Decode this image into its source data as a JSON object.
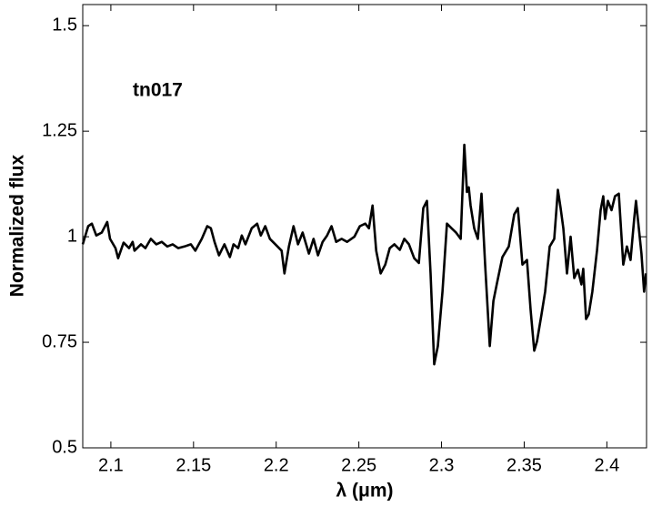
{
  "chart_data": {
    "type": "line",
    "xlabel": "λ (μm)",
    "ylabel": "Normalized flux",
    "annotation": "tn017",
    "x": [
      2.083,
      2.0863,
      2.0885,
      2.0912,
      2.0945,
      2.0978,
      2.0995,
      2.1028,
      2.1044,
      2.1077,
      2.111,
      2.1132,
      2.1143,
      2.1182,
      2.1209,
      2.1242,
      2.1275,
      2.1308,
      2.1341,
      2.1374,
      2.1407,
      2.1445,
      2.1484,
      2.1511,
      2.155,
      2.1583,
      2.1605,
      2.1627,
      2.1654,
      2.1687,
      2.172,
      2.1742,
      2.177,
      2.1792,
      2.1814,
      2.1852,
      2.1885,
      2.1907,
      2.1934,
      2.1962,
      2.1995,
      2.2033,
      2.205,
      2.2077,
      2.2105,
      2.2132,
      2.216,
      2.2198,
      2.2226,
      2.2253,
      2.2281,
      2.2308,
      2.2335,
      2.2363,
      2.2396,
      2.2429,
      2.2473,
      2.2506,
      2.2539,
      2.2561,
      2.2583,
      2.2605,
      2.2632,
      2.266,
      2.2687,
      2.2715,
      2.2748,
      2.2775,
      2.2803,
      2.2835,
      2.2863,
      2.289,
      2.2912,
      2.2934,
      2.2956,
      2.2978,
      2.3006,
      2.3033,
      2.3061,
      2.3088,
      2.3116,
      2.3138,
      2.3154,
      2.3165,
      2.3176,
      2.3198,
      2.322,
      2.3242,
      2.3264,
      2.3292,
      2.3314,
      2.3336,
      2.3368,
      2.3407,
      2.344,
      2.3462,
      2.3489,
      2.3517,
      2.3539,
      2.3561,
      2.3577,
      2.3605,
      2.3627,
      2.3654,
      2.3682,
      2.3704,
      2.372,
      2.3737,
      2.3759,
      2.3781,
      2.3803,
      2.3825,
      2.3846,
      2.3857,
      2.3874,
      2.389,
      2.3912,
      2.394,
      2.3962,
      2.3978,
      2.3989,
      2.4006,
      2.4028,
      2.4049,
      2.4072,
      2.4099,
      2.4121,
      2.4143,
      2.4165,
      2.4176,
      2.4209,
      2.4225,
      2.4236
    ],
    "series": [
      {
        "name": "tn017",
        "color": "#000000",
        "values": [
          0.982,
          1.025,
          1.031,
          1.003,
          1.01,
          1.035,
          0.995,
          0.973,
          0.949,
          0.986,
          0.973,
          0.988,
          0.967,
          0.982,
          0.973,
          0.995,
          0.982,
          0.988,
          0.977,
          0.982,
          0.973,
          0.977,
          0.982,
          0.967,
          0.995,
          1.025,
          1.02,
          0.988,
          0.956,
          0.982,
          0.952,
          0.982,
          0.973,
          1.003,
          0.982,
          1.02,
          1.031,
          1.003,
          1.025,
          0.995,
          0.982,
          0.967,
          0.913,
          0.977,
          1.025,
          0.982,
          1.01,
          0.96,
          0.995,
          0.956,
          0.988,
          1.003,
          1.025,
          0.988,
          0.995,
          0.988,
          1.0,
          1.025,
          1.031,
          1.02,
          1.074,
          0.967,
          0.913,
          0.934,
          0.973,
          0.982,
          0.969,
          0.995,
          0.982,
          0.949,
          0.938,
          1.068,
          1.085,
          0.913,
          0.698,
          0.741,
          0.87,
          1.031,
          1.02,
          1.01,
          0.995,
          1.218,
          1.106,
          1.117,
          1.074,
          1.02,
          0.995,
          1.102,
          0.934,
          0.741,
          0.848,
          0.891,
          0.952,
          0.977,
          1.053,
          1.068,
          0.934,
          0.945,
          0.827,
          0.73,
          0.752,
          0.816,
          0.87,
          0.977,
          0.995,
          1.111,
          1.068,
          1.02,
          0.913,
          1.0,
          0.902,
          0.922,
          0.887,
          0.924,
          0.805,
          0.816,
          0.87,
          0.967,
          1.063,
          1.096,
          1.042,
          1.085,
          1.063,
          1.096,
          1.102,
          0.934,
          0.977,
          0.945,
          1.042,
          1.085,
          0.96,
          0.87,
          0.913
        ]
      }
    ],
    "xlim": [
      2.083,
      2.424
    ],
    "ylim": [
      0.5,
      1.55
    ],
    "xticks": [
      2.1,
      2.15,
      2.2,
      2.25,
      2.3,
      2.35,
      2.4
    ],
    "yticks": [
      0.5,
      0.75,
      1,
      1.25,
      1.5
    ],
    "grid": false
  }
}
